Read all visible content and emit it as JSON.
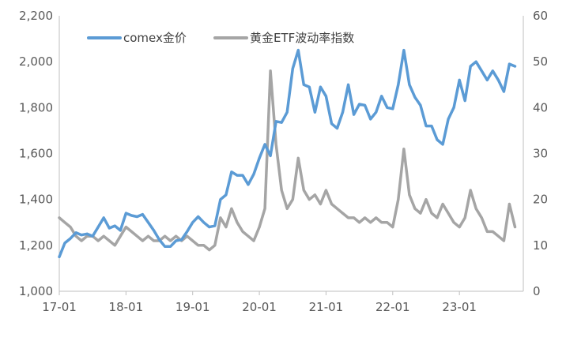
{
  "chart_data": {
    "type": "line",
    "title": "",
    "xlabel": "",
    "ylabel_left": "",
    "ylabel_right": "",
    "x_ticks": [
      "17-01",
      "18-01",
      "19-01",
      "20-01",
      "21-01",
      "22-01",
      "23-01"
    ],
    "y_left": {
      "min": 1000,
      "max": 2200,
      "ticks": [
        "1,000",
        "1,200",
        "1,400",
        "1,600",
        "1,800",
        "2,000",
        "2,200"
      ]
    },
    "y_right": {
      "min": 0,
      "max": 60,
      "ticks": [
        "0",
        "10",
        "20",
        "30",
        "40",
        "50",
        "60"
      ]
    },
    "legend_position": "top-left",
    "grid": false,
    "series": [
      {
        "name": "comex金价",
        "axis": "left",
        "color": "#5B9BD5",
        "points": [
          [
            "2017-01-01",
            1150
          ],
          [
            "2017-02-01",
            1210
          ],
          [
            "2017-03-01",
            1230
          ],
          [
            "2017-04-01",
            1255
          ],
          [
            "2017-05-01",
            1245
          ],
          [
            "2017-06-01",
            1250
          ],
          [
            "2017-07-01",
            1240
          ],
          [
            "2017-08-01",
            1280
          ],
          [
            "2017-09-01",
            1320
          ],
          [
            "2017-10-01",
            1275
          ],
          [
            "2017-11-01",
            1285
          ],
          [
            "2017-12-01",
            1265
          ],
          [
            "2018-01-01",
            1340
          ],
          [
            "2018-02-01",
            1330
          ],
          [
            "2018-03-01",
            1325
          ],
          [
            "2018-04-01",
            1335
          ],
          [
            "2018-05-01",
            1300
          ],
          [
            "2018-06-01",
            1265
          ],
          [
            "2018-07-01",
            1225
          ],
          [
            "2018-08-01",
            1195
          ],
          [
            "2018-09-01",
            1195
          ],
          [
            "2018-10-01",
            1220
          ],
          [
            "2018-11-01",
            1225
          ],
          [
            "2018-12-01",
            1260
          ],
          [
            "2019-01-01",
            1300
          ],
          [
            "2019-02-01",
            1325
          ],
          [
            "2019-03-01",
            1300
          ],
          [
            "2019-04-01",
            1280
          ],
          [
            "2019-05-01",
            1285
          ],
          [
            "2019-06-01",
            1400
          ],
          [
            "2019-07-01",
            1420
          ],
          [
            "2019-08-01",
            1520
          ],
          [
            "2019-09-01",
            1505
          ],
          [
            "2019-10-01",
            1505
          ],
          [
            "2019-11-01",
            1465
          ],
          [
            "2019-12-01",
            1510
          ],
          [
            "2020-01-01",
            1580
          ],
          [
            "2020-02-01",
            1640
          ],
          [
            "2020-03-01",
            1590
          ],
          [
            "2020-04-01",
            1740
          ],
          [
            "2020-05-01",
            1735
          ],
          [
            "2020-06-01",
            1780
          ],
          [
            "2020-07-01",
            1970
          ],
          [
            "2020-08-01",
            2050
          ],
          [
            "2020-09-01",
            1900
          ],
          [
            "2020-10-01",
            1890
          ],
          [
            "2020-11-01",
            1780
          ],
          [
            "2020-12-01",
            1890
          ],
          [
            "2021-01-01",
            1850
          ],
          [
            "2021-02-01",
            1730
          ],
          [
            "2021-03-01",
            1710
          ],
          [
            "2021-04-01",
            1780
          ],
          [
            "2021-05-01",
            1900
          ],
          [
            "2021-06-01",
            1770
          ],
          [
            "2021-07-01",
            1815
          ],
          [
            "2021-08-01",
            1810
          ],
          [
            "2021-09-01",
            1750
          ],
          [
            "2021-10-01",
            1780
          ],
          [
            "2021-11-01",
            1850
          ],
          [
            "2021-12-01",
            1800
          ],
          [
            "2022-01-01",
            1795
          ],
          [
            "2022-02-01",
            1900
          ],
          [
            "2022-03-01",
            2050
          ],
          [
            "2022-04-01",
            1900
          ],
          [
            "2022-05-01",
            1845
          ],
          [
            "2022-06-01",
            1810
          ],
          [
            "2022-07-01",
            1720
          ],
          [
            "2022-08-01",
            1720
          ],
          [
            "2022-09-01",
            1660
          ],
          [
            "2022-10-01",
            1640
          ],
          [
            "2022-11-01",
            1750
          ],
          [
            "2022-12-01",
            1800
          ],
          [
            "2023-01-01",
            1920
          ],
          [
            "2023-02-01",
            1830
          ],
          [
            "2023-03-01",
            1980
          ],
          [
            "2023-04-01",
            2000
          ],
          [
            "2023-05-01",
            1960
          ],
          [
            "2023-06-01",
            1920
          ],
          [
            "2023-07-01",
            1960
          ],
          [
            "2023-08-01",
            1920
          ],
          [
            "2023-09-01",
            1870
          ],
          [
            "2023-10-01",
            1990
          ],
          [
            "2023-11-01",
            1980
          ]
        ]
      },
      {
        "name": "黄金ETF波动率指数",
        "axis": "right",
        "color": "#A5A5A5",
        "points": [
          [
            "2017-01-01",
            16
          ],
          [
            "2017-02-01",
            15
          ],
          [
            "2017-03-01",
            14
          ],
          [
            "2017-04-01",
            12
          ],
          [
            "2017-05-01",
            11
          ],
          [
            "2017-06-01",
            12
          ],
          [
            "2017-07-01",
            12
          ],
          [
            "2017-08-01",
            11
          ],
          [
            "2017-09-01",
            12
          ],
          [
            "2017-10-01",
            11
          ],
          [
            "2017-11-01",
            10
          ],
          [
            "2017-12-01",
            12
          ],
          [
            "2018-01-01",
            14
          ],
          [
            "2018-02-01",
            13
          ],
          [
            "2018-03-01",
            12
          ],
          [
            "2018-04-01",
            11
          ],
          [
            "2018-05-01",
            12
          ],
          [
            "2018-06-01",
            11
          ],
          [
            "2018-07-01",
            11
          ],
          [
            "2018-08-01",
            12
          ],
          [
            "2018-09-01",
            11
          ],
          [
            "2018-10-01",
            12
          ],
          [
            "2018-11-01",
            11
          ],
          [
            "2018-12-01",
            12
          ],
          [
            "2019-01-01",
            11
          ],
          [
            "2019-02-01",
            10
          ],
          [
            "2019-03-01",
            10
          ],
          [
            "2019-04-01",
            9
          ],
          [
            "2019-05-01",
            10
          ],
          [
            "2019-06-01",
            16
          ],
          [
            "2019-07-01",
            14
          ],
          [
            "2019-08-01",
            18
          ],
          [
            "2019-09-01",
            15
          ],
          [
            "2019-10-01",
            13
          ],
          [
            "2019-11-01",
            12
          ],
          [
            "2019-12-01",
            11
          ],
          [
            "2020-01-01",
            14
          ],
          [
            "2020-02-01",
            18
          ],
          [
            "2020-03-01",
            48
          ],
          [
            "2020-04-01",
            32
          ],
          [
            "2020-05-01",
            22
          ],
          [
            "2020-06-01",
            18
          ],
          [
            "2020-07-01",
            20
          ],
          [
            "2020-08-01",
            29
          ],
          [
            "2020-09-01",
            22
          ],
          [
            "2020-10-01",
            20
          ],
          [
            "2020-11-01",
            21
          ],
          [
            "2020-12-01",
            19
          ],
          [
            "2021-01-01",
            22
          ],
          [
            "2021-02-01",
            19
          ],
          [
            "2021-03-01",
            18
          ],
          [
            "2021-04-01",
            17
          ],
          [
            "2021-05-01",
            16
          ],
          [
            "2021-06-01",
            16
          ],
          [
            "2021-07-01",
            15
          ],
          [
            "2021-08-01",
            16
          ],
          [
            "2021-09-01",
            15
          ],
          [
            "2021-10-01",
            16
          ],
          [
            "2021-11-01",
            15
          ],
          [
            "2021-12-01",
            15
          ],
          [
            "2022-01-01",
            14
          ],
          [
            "2022-02-01",
            20
          ],
          [
            "2022-03-01",
            31
          ],
          [
            "2022-04-01",
            21
          ],
          [
            "2022-05-01",
            18
          ],
          [
            "2022-06-01",
            17
          ],
          [
            "2022-07-01",
            20
          ],
          [
            "2022-08-01",
            17
          ],
          [
            "2022-09-01",
            16
          ],
          [
            "2022-10-01",
            19
          ],
          [
            "2022-11-01",
            17
          ],
          [
            "2022-12-01",
            15
          ],
          [
            "2023-01-01",
            14
          ],
          [
            "2023-02-01",
            16
          ],
          [
            "2023-03-01",
            22
          ],
          [
            "2023-04-01",
            18
          ],
          [
            "2023-05-01",
            16
          ],
          [
            "2023-06-01",
            13
          ],
          [
            "2023-07-01",
            13
          ],
          [
            "2023-08-01",
            12
          ],
          [
            "2023-09-01",
            11
          ],
          [
            "2023-10-01",
            19
          ],
          [
            "2023-11-01",
            14
          ]
        ]
      }
    ]
  }
}
